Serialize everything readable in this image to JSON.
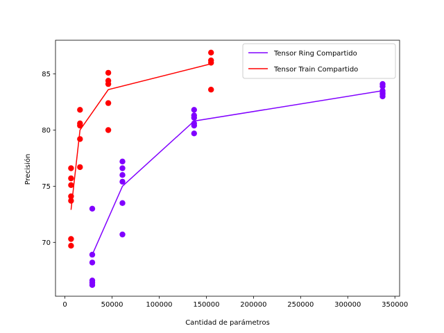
{
  "chart_data": {
    "type": "scatter",
    "title": "",
    "xlabel": "Cantidad de parámetros",
    "ylabel": "Precisión",
    "xlim": [
      -10000,
      355000
    ],
    "ylim": [
      65.2,
      88.0
    ],
    "xticks": [
      0,
      50000,
      100000,
      150000,
      200000,
      250000,
      300000,
      350000
    ],
    "yticks": [
      70,
      75,
      80,
      85
    ],
    "grid": false,
    "legend_position": "upper-right",
    "series": [
      {
        "name": "Tensor Ring Compartido",
        "color": "#8000ff",
        "points": [
          {
            "x": 29000,
            "y": 73.0
          },
          {
            "x": 29000,
            "y": 68.9
          },
          {
            "x": 29000,
            "y": 68.2
          },
          {
            "x": 29000,
            "y": 66.6
          },
          {
            "x": 29000,
            "y": 66.4
          },
          {
            "x": 29000,
            "y": 66.2
          },
          {
            "x": 61000,
            "y": 77.2
          },
          {
            "x": 61000,
            "y": 76.6
          },
          {
            "x": 61000,
            "y": 76.0
          },
          {
            "x": 61000,
            "y": 75.4
          },
          {
            "x": 61000,
            "y": 73.5
          },
          {
            "x": 61000,
            "y": 70.7
          },
          {
            "x": 137000,
            "y": 81.8
          },
          {
            "x": 137000,
            "y": 81.3
          },
          {
            "x": 137000,
            "y": 81.1
          },
          {
            "x": 137000,
            "y": 80.6
          },
          {
            "x": 137000,
            "y": 80.4
          },
          {
            "x": 137000,
            "y": 79.7
          },
          {
            "x": 337000,
            "y": 84.1
          },
          {
            "x": 337000,
            "y": 83.9
          },
          {
            "x": 337000,
            "y": 83.5
          },
          {
            "x": 337000,
            "y": 83.3
          },
          {
            "x": 337000,
            "y": 83.2
          },
          {
            "x": 337000,
            "y": 83.0
          }
        ],
        "line": [
          {
            "x": 29000,
            "y": 68.9
          },
          {
            "x": 61000,
            "y": 75.0
          },
          {
            "x": 137000,
            "y": 80.8
          },
          {
            "x": 337000,
            "y": 83.5
          }
        ]
      },
      {
        "name": "Tensor Train Compartido",
        "color": "#ff0000",
        "points": [
          {
            "x": 6500,
            "y": 76.6
          },
          {
            "x": 6500,
            "y": 75.7
          },
          {
            "x": 6500,
            "y": 75.1
          },
          {
            "x": 6500,
            "y": 74.1
          },
          {
            "x": 6500,
            "y": 73.7
          },
          {
            "x": 6500,
            "y": 70.3
          },
          {
            "x": 6500,
            "y": 69.7
          },
          {
            "x": 16000,
            "y": 81.8
          },
          {
            "x": 16000,
            "y": 80.6
          },
          {
            "x": 16000,
            "y": 80.4
          },
          {
            "x": 16000,
            "y": 79.2
          },
          {
            "x": 16000,
            "y": 76.7
          },
          {
            "x": 46000,
            "y": 85.1
          },
          {
            "x": 46000,
            "y": 84.4
          },
          {
            "x": 46000,
            "y": 84.1
          },
          {
            "x": 46000,
            "y": 82.4
          },
          {
            "x": 46000,
            "y": 80.0
          },
          {
            "x": 155000,
            "y": 86.9
          },
          {
            "x": 155000,
            "y": 86.2
          },
          {
            "x": 155000,
            "y": 86.0
          },
          {
            "x": 155000,
            "y": 83.6
          }
        ],
        "line": [
          {
            "x": 6500,
            "y": 72.9
          },
          {
            "x": 16000,
            "y": 80.0
          },
          {
            "x": 46000,
            "y": 83.6
          },
          {
            "x": 155000,
            "y": 85.9
          }
        ]
      }
    ]
  }
}
